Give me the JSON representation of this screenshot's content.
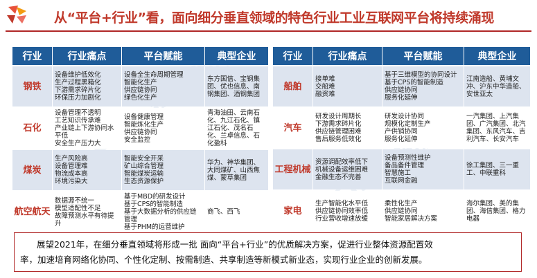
{
  "title": "从“平台+行业”看，面向细分垂直领域的特色行业工业互联网平台将持续涌现",
  "left_table": {
    "headers": [
      "行业",
      "行业痛点",
      "平台赋能",
      "典型企业"
    ],
    "rows": [
      {
        "industry": "钢铁",
        "pain": "设备维护低效化\n生产过程黑箱化\n下游需求碎片化\n环保压力加剧化",
        "enable": "设备全生命周期管理\n智能化生产\n供应链协同\n绿色化生产",
        "companies": "东方国信、宝钢集团、优也信息、南钢集团、酒钢集团"
      },
      {
        "industry": "石化",
        "pain": "设备管理不透明\n工艺知识传承难\n产业链上下游协同水平低\n安全生产压力大",
        "enable": "设备健康管理\n智能炼化生产\n供应链协同\n安全监控",
        "companies": "青海油田、云南石化、九江石化、镇江石化、茂名石化、兰卓信息、石化盈科"
      },
      {
        "industry": "煤炭",
        "pain": "生产风险高\n设备管理难\n物流成本高\n环境污染大",
        "enable": "智能安全开采\n矿山综合管理\n智能煤炭运输\n生态资源保护",
        "companies": "华为、神华集团、大同煤矿、山西焦煤、蒙草集团"
      },
      {
        "industry": "航空航天",
        "pain": "数据源不统一\n模型适配性不足\n故障预测水平有待提升",
        "enable": "基于MBD的研发设计\n基于CPS的智能制造\n基于大数据分析的供应链管理\n基于PHM的运营维护",
        "companies": "商飞、西飞"
      }
    ]
  },
  "right_table": {
    "headers": [
      "行业",
      "行业痛点",
      "平台赋能",
      "典型企业"
    ],
    "rows": [
      {
        "industry": "船舶",
        "pain": "接单难\n交船难\n融资难",
        "enable": "基于三维模型的协同设计\n基于CPS的智能制造\n供应链协同\n服务化延伸",
        "companies": "江南造船、黄埔文冲、沪东中华造船、安世亚太"
      },
      {
        "industry": "汽车",
        "pain": "研发设计周期长\n下游需求碎片化\n供应链管理困难\n售后服务低效化",
        "enable": "研发设计协同\n规模化定制生产\n产供销协同\n服务化延伸",
        "companies": "一汽集团、上汽集团、广汽集团、北汽集团、东风汽车、吉利汽车、长安汽车"
      },
      {
        "industry": "工程机械",
        "pain": "资源调配效率低下\n机械设备运维困难\n金融生态不完善",
        "enable": "设备预测性维护\n备品备件管理\n智慧施工\n互联网金融",
        "companies": "徐工集团、三一重工、中联重科"
      },
      {
        "industry": "家电",
        "pain": "生产智能化水平低\n供应链协同效率低\n行业营收增速放缓",
        "enable": "柔性化生产\n供应链协同\n智能家居解决方案",
        "companies": "海尔集团、美的集团、海信集团、格力电器"
      }
    ]
  },
  "watermark": "CCID 赛迪顾问",
  "summary": {
    "line1": "展望2021年，在细分垂直领域将形成一批 面向“平台+行业”的优质解决方案，促进行业整体资源配置效",
    "line2": "率，加速培育网络化协同、个性化定制、按需制造、共享制造等新模式新业态，实现行业企业的创新发展。"
  },
  "colors": {
    "header_bg": "#1f5c99",
    "accent": "#c0392b",
    "row_shade": "#dde4ef"
  }
}
